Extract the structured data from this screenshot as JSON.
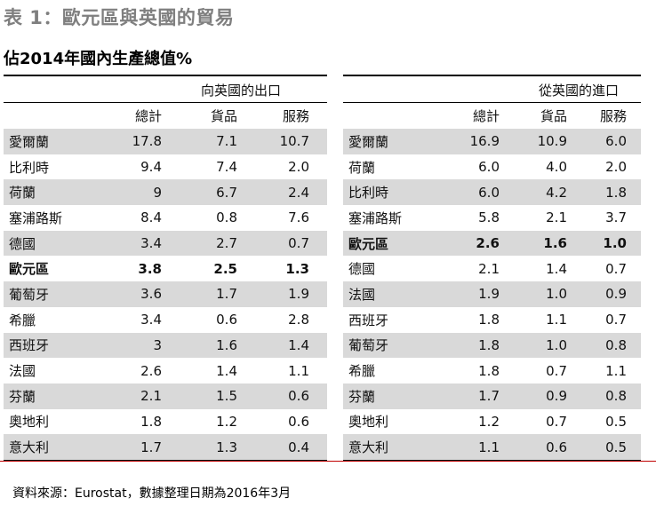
{
  "title": "表 1：歐元區與英國的貿易",
  "subtitle": "佔2014年國內生產總值%",
  "left": {
    "group_header": "向英國的出口",
    "columns": [
      "",
      "總計",
      "貨品",
      "服務"
    ],
    "rows": [
      [
        "愛爾蘭",
        "17.8",
        "7.1",
        "10.7"
      ],
      [
        "比利時",
        "9.4",
        "7.4",
        "2.0"
      ],
      [
        "荷蘭",
        "9",
        "6.7",
        "2.4"
      ],
      [
        "塞浦路斯",
        "8.4",
        "0.8",
        "7.6"
      ],
      [
        "德國",
        "3.4",
        "2.7",
        "0.7"
      ],
      [
        "歐元區",
        "3.8",
        "2.5",
        "1.3"
      ],
      [
        "葡萄牙",
        "3.6",
        "1.7",
        "1.9"
      ],
      [
        "希臘",
        "3.4",
        "0.6",
        "2.8"
      ],
      [
        "西班牙",
        "3",
        "1.6",
        "1.4"
      ],
      [
        "法國",
        "2.6",
        "1.4",
        "1.1"
      ],
      [
        "芬蘭",
        "2.1",
        "1.5",
        "0.6"
      ],
      [
        "奧地利",
        "1.8",
        "1.2",
        "0.6"
      ],
      [
        "意大利",
        "1.7",
        "1.3",
        "0.4"
      ]
    ],
    "bold_row": 5
  },
  "right": {
    "group_header": "從英國的進口",
    "columns": [
      "",
      "總計",
      "貨品",
      "服務"
    ],
    "rows": [
      [
        "愛爾蘭",
        "16.9",
        "10.9",
        "6.0"
      ],
      [
        "荷蘭",
        "6.0",
        "4.0",
        "2.0"
      ],
      [
        "比利時",
        "6.0",
        "4.2",
        "1.8"
      ],
      [
        "塞浦路斯",
        "5.8",
        "2.1",
        "3.7"
      ],
      [
        "歐元區",
        "2.6",
        "1.6",
        "1.0"
      ],
      [
        "德國",
        "2.1",
        "1.4",
        "0.7"
      ],
      [
        "法國",
        "1.9",
        "1.0",
        "0.9"
      ],
      [
        "西班牙",
        "1.8",
        "1.1",
        "0.7"
      ],
      [
        "葡萄牙",
        "1.8",
        "1.0",
        "0.8"
      ],
      [
        "希臘",
        "1.8",
        "0.7",
        "1.1"
      ],
      [
        "芬蘭",
        "1.7",
        "0.9",
        "0.8"
      ],
      [
        "奧地利",
        "1.2",
        "0.7",
        "0.5"
      ],
      [
        "意大利",
        "1.1",
        "0.6",
        "0.5"
      ]
    ],
    "bold_row": 4
  },
  "source": "資料來源：Eurostat，數據整理日期為2016年3月",
  "colors": {
    "shade": "#d9d9d9",
    "title_gray": "#7f7f7f",
    "accent_red": "#c00000"
  }
}
